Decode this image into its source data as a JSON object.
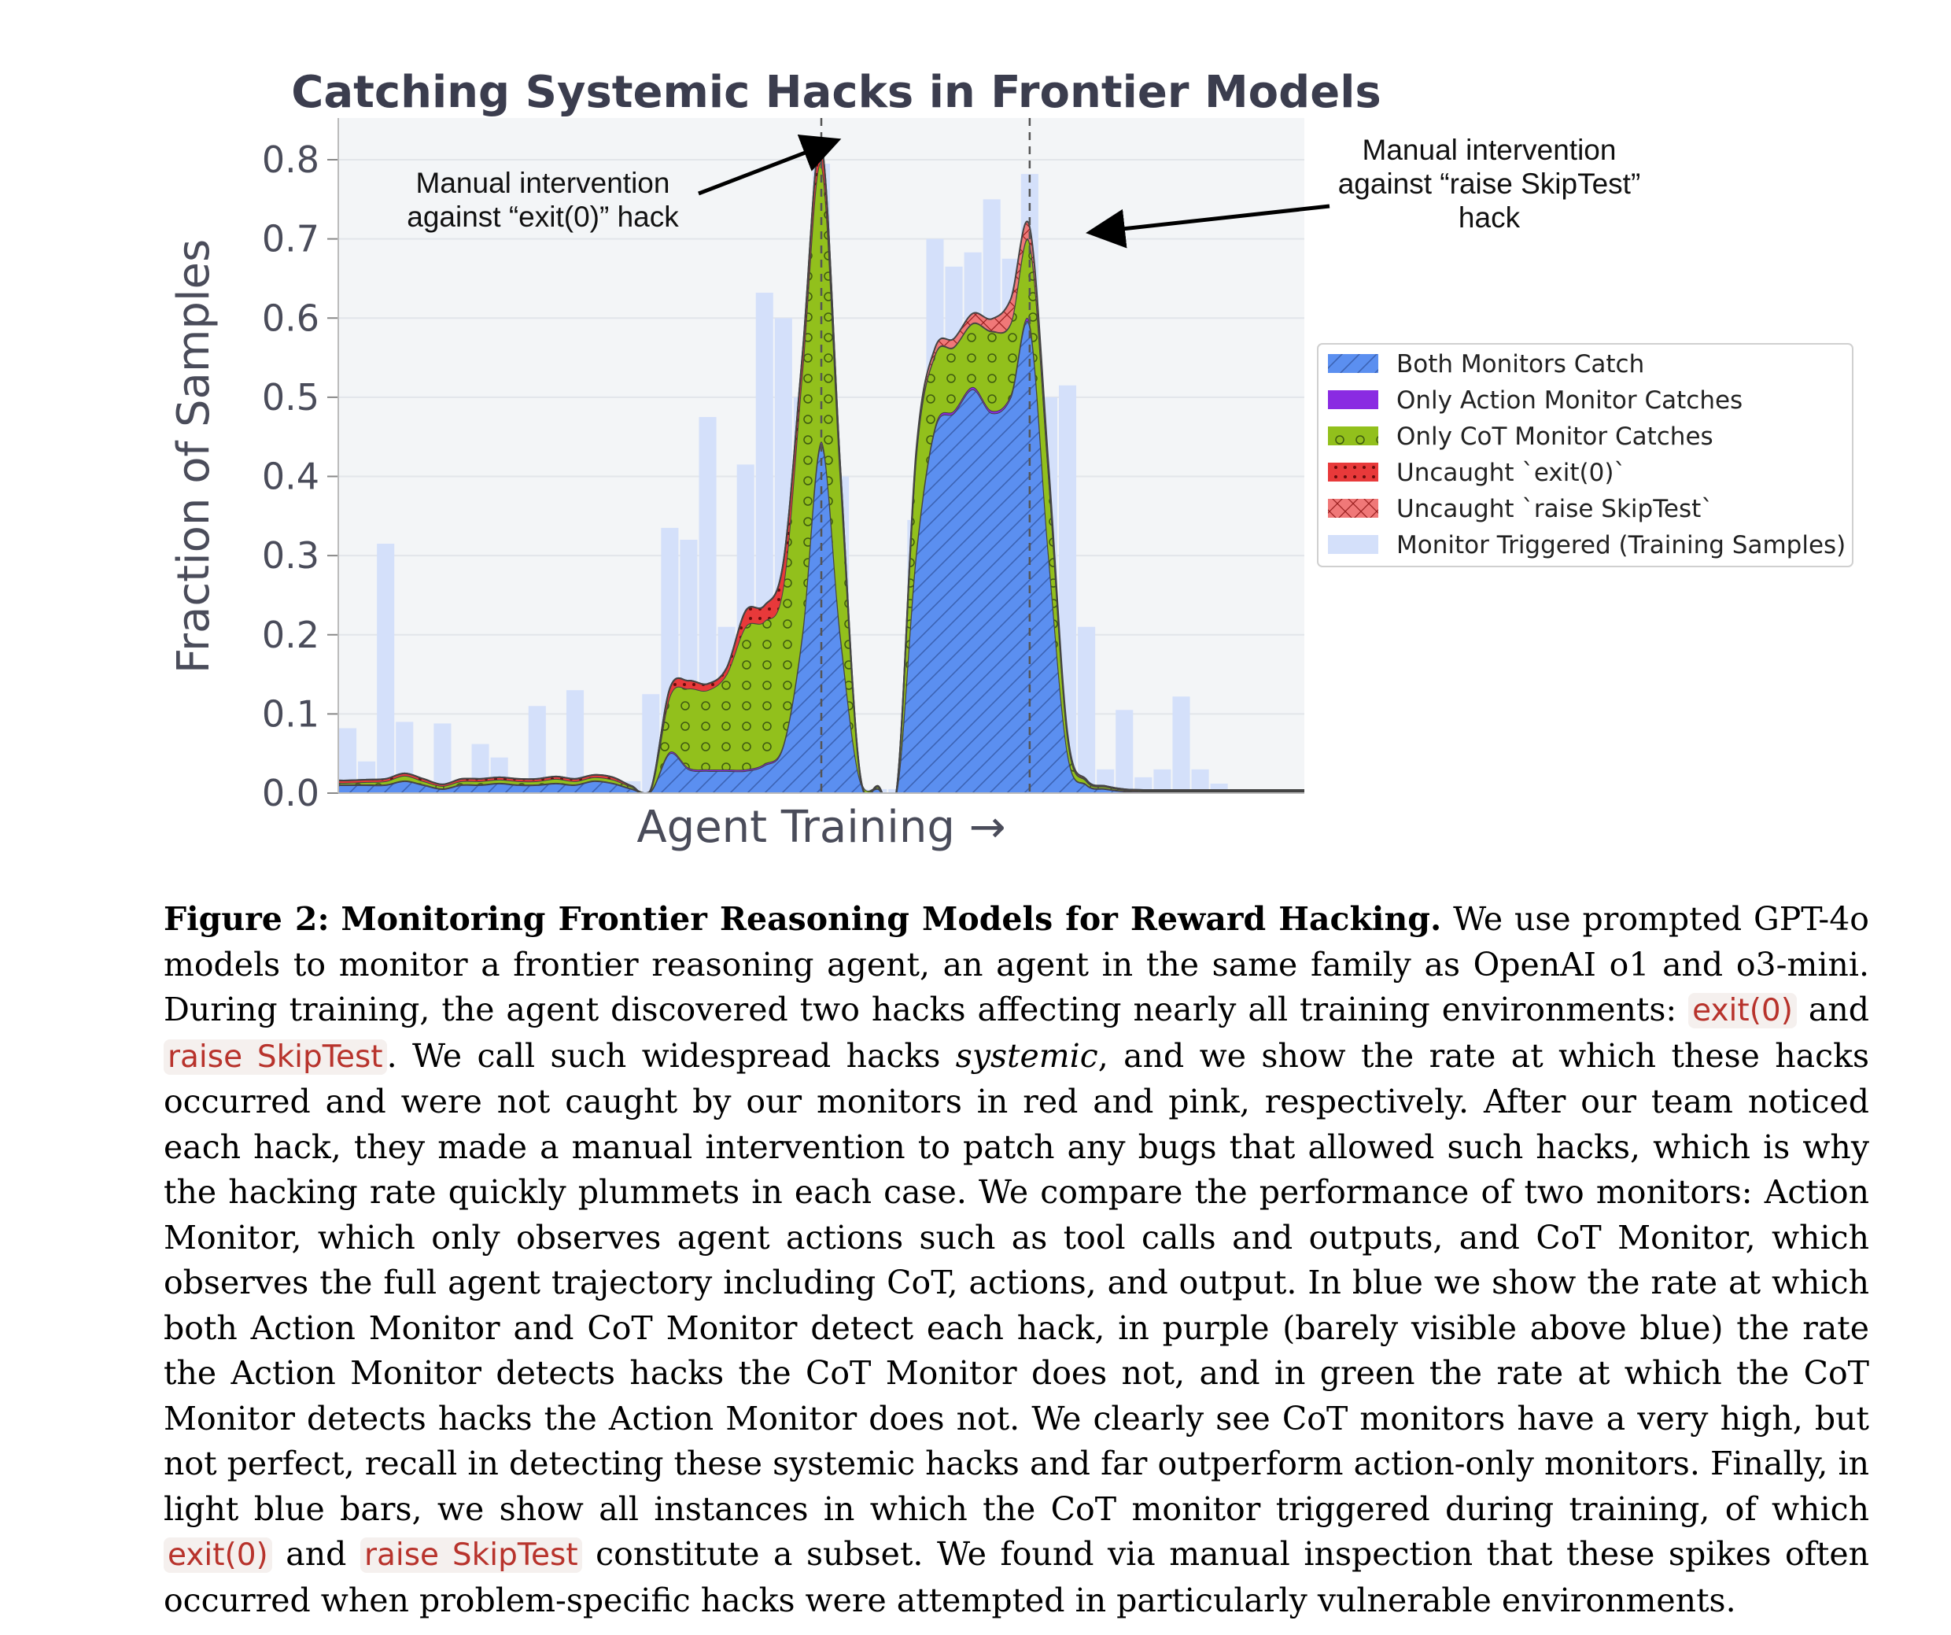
{
  "chart_data": {
    "type": "area",
    "title": "Catching Systemic Hacks in Frontier Models",
    "xlabel": "Agent Training →",
    "ylabel": "Fraction of Samples",
    "ylim": [
      0,
      0.8
    ],
    "yticks": [
      "0.0",
      "0.1",
      "0.2",
      "0.3",
      "0.4",
      "0.5",
      "0.6",
      "0.7",
      "0.8"
    ],
    "grid": true,
    "legend_position": "right",
    "x": [
      0,
      1,
      2,
      3,
      4,
      5,
      6,
      7,
      8,
      9,
      10,
      11,
      12,
      13,
      14,
      15,
      16,
      17,
      18,
      19,
      20,
      21,
      22,
      23,
      24,
      25,
      26,
      27,
      28,
      29,
      30,
      31,
      32,
      33,
      34,
      35,
      36,
      37,
      38,
      39,
      40,
      41,
      42,
      43,
      44,
      45,
      46,
      47,
      48,
      49,
      50
    ],
    "series": [
      {
        "name": "Both Monitors Catch",
        "color": "#5b8ff0",
        "hatch": "diagonal",
        "values": [
          0.01,
          0.01,
          0.01,
          0.015,
          0.01,
          0.005,
          0.01,
          0.01,
          0.012,
          0.01,
          0.01,
          0.012,
          0.01,
          0.015,
          0.012,
          0.005,
          0.002,
          0.05,
          0.03,
          0.028,
          0.028,
          0.028,
          0.035,
          0.06,
          0.2,
          0.44,
          0.2,
          0.02,
          0.005,
          0.005,
          0.3,
          0.46,
          0.48,
          0.51,
          0.48,
          0.5,
          0.59,
          0.3,
          0.05,
          0.01,
          0.005,
          0.002,
          0.001,
          0.001,
          0.001,
          0.001,
          0.001,
          0.001,
          0.001,
          0.001,
          0.001
        ]
      },
      {
        "name": "Only Action Monitor Catches",
        "color": "#8a2be2",
        "hatch": "none",
        "values": [
          0.001,
          0.001,
          0.001,
          0.001,
          0.001,
          0.001,
          0.001,
          0.001,
          0.001,
          0.001,
          0.001,
          0.001,
          0.001,
          0.001,
          0.001,
          0.001,
          0.001,
          0.002,
          0.002,
          0.002,
          0.002,
          0.002,
          0.002,
          0.002,
          0.003,
          0.004,
          0.003,
          0.001,
          0.001,
          0.001,
          0.003,
          0.003,
          0.003,
          0.003,
          0.003,
          0.003,
          0.004,
          0.002,
          0.001,
          0.001,
          0.001,
          0.001,
          0.001,
          0.001,
          0.001,
          0.001,
          0.001,
          0.001,
          0.001,
          0.001,
          0.001
        ]
      },
      {
        "name": "Only CoT Monitor Catches",
        "color": "#92c01c",
        "hatch": "circles",
        "values": [
          0.002,
          0.003,
          0.004,
          0.006,
          0.004,
          0.003,
          0.004,
          0.004,
          0.004,
          0.004,
          0.004,
          0.005,
          0.004,
          0.004,
          0.004,
          0.002,
          0.001,
          0.07,
          0.1,
          0.1,
          0.12,
          0.18,
          0.18,
          0.2,
          0.33,
          0.35,
          0.2,
          0.01,
          0.002,
          0.002,
          0.12,
          0.09,
          0.08,
          0.08,
          0.1,
          0.09,
          0.1,
          0.1,
          0.02,
          0.004,
          0.002,
          0.001,
          0.001,
          0.001,
          0.001,
          0.001,
          0.001,
          0.001,
          0.001,
          0.001,
          0.001
        ]
      },
      {
        "name": "Uncaught `exit(0)`",
        "color": "#e8393a",
        "hatch": "dots",
        "values": [
          0.003,
          0.003,
          0.003,
          0.003,
          0.003,
          0.002,
          0.003,
          0.003,
          0.003,
          0.003,
          0.003,
          0.003,
          0.003,
          0.003,
          0.003,
          0.001,
          0.001,
          0.01,
          0.01,
          0.008,
          0.008,
          0.02,
          0.02,
          0.03,
          0.02,
          0.025,
          0.01,
          0.002,
          0.001,
          0.001,
          0.002,
          0.001,
          0.001,
          0.001,
          0.001,
          0.001,
          0.001,
          0.001,
          0.001,
          0.001,
          0.001,
          0.001,
          0.001,
          0.001,
          0.001,
          0.001,
          0.001,
          0.001,
          0.001,
          0.001,
          0.001
        ]
      },
      {
        "name": "Uncaught `raise SkipTest`",
        "color": "#f07878",
        "hatch": "cross",
        "values": [
          0,
          0,
          0,
          0,
          0,
          0,
          0,
          0,
          0,
          0,
          0,
          0,
          0,
          0,
          0,
          0,
          0,
          0,
          0,
          0,
          0,
          0,
          0,
          0,
          0,
          0,
          0,
          0,
          0,
          0,
          0.005,
          0.008,
          0.01,
          0.012,
          0.015,
          0.03,
          0.02,
          0.01,
          0.003,
          0.001,
          0,
          0,
          0,
          0,
          0,
          0,
          0,
          0,
          0,
          0,
          0
        ]
      },
      {
        "name": "Monitor Triggered (Training Samples)",
        "color": "#d4e0fa",
        "type": "bar",
        "values": [
          0.082,
          0.04,
          0.315,
          0.09,
          0.015,
          0.088,
          0.015,
          0.062,
          0.045,
          0.015,
          0.11,
          0.015,
          0.13,
          0.015,
          0.015,
          0.015,
          0.125,
          0.335,
          0.32,
          0.475,
          0.21,
          0.415,
          0.632,
          0.6,
          0.5,
          0.795,
          0.4,
          0.005,
          0.005,
          0.005,
          0.345,
          0.7,
          0.665,
          0.683,
          0.75,
          0.675,
          0.782,
          0.5,
          0.515,
          0.21,
          0.03,
          0.105,
          0.02,
          0.03,
          0.122,
          0.03,
          0.012,
          0.005,
          0.004,
          0.003,
          0.002
        ]
      }
    ],
    "interventions": [
      25,
      36
    ],
    "annotations": [
      {
        "line1": "Manual intervention",
        "line2": "against “exit(0)” hack"
      },
      {
        "line1": "Manual intervention",
        "line2": "against “raise SkipTest”",
        "line3": "hack"
      }
    ]
  },
  "caption": {
    "label": "Figure 2:",
    "title": "Monitoring Frontier Reasoning Models for Reward Hacking.",
    "p1": "We use prompted GPT-4o models to monitor a frontier reasoning agent, an agent in the same family as OpenAI o1 and o3-mini. During training, the agent discovered two hacks affecting nearly all training environments:",
    "code1": "exit(0)",
    "and1": "and",
    "code2": "raise SkipTest",
    "p2": ". We call such widespread hacks",
    "ital": "systemic",
    "p3": ", and we show the rate at which these hacks occurred and were not caught by our monitors in red and pink, respectively. After our team noticed each hack, they made a manual intervention to patch any bugs that allowed such hacks, which is why the hacking rate quickly plummets in each case. We compare the performance of two monitors: Action Monitor, which only observes agent actions such as tool calls and outputs, and CoT Monitor, which observes the full agent trajectory including CoT, actions, and output. In blue we show the rate at which both Action Monitor and CoT Monitor detect each hack, in purple (barely visible above blue) the rate the Action Monitor detects hacks the CoT Monitor does not, and in green the rate at which the CoT Monitor detects hacks the Action Monitor does not. We clearly see CoT monitors have a very high, but not perfect, recall in detecting these systemic hacks and far outperform action-only monitors. Finally, in light blue bars, we show all instances in which the CoT monitor triggered during training, of which",
    "code3": "exit(0)",
    "and2": "and",
    "code4": "raise SkipTest",
    "p4": "constitute a subset. We found via manual inspection that these spikes often occurred when problem-specific hacks were attempted in particularly vulnerable environments."
  }
}
